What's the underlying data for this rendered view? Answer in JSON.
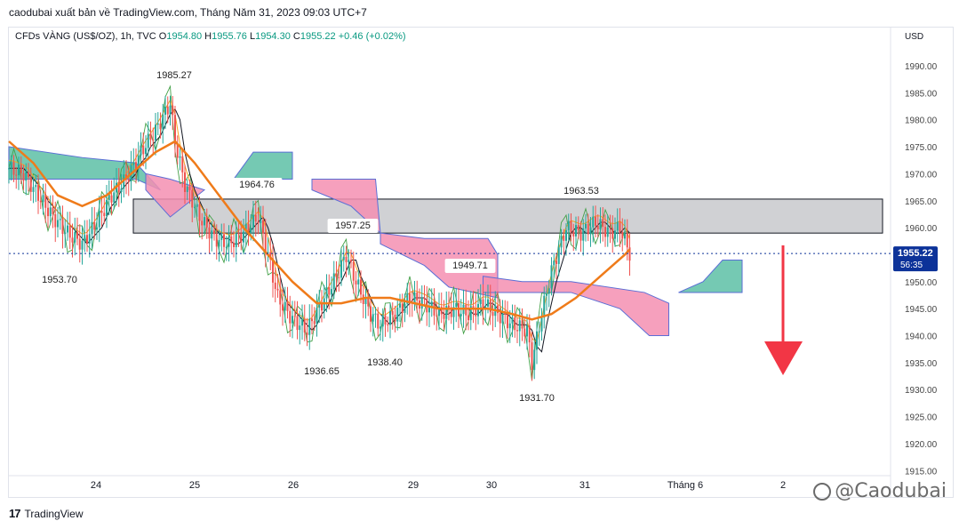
{
  "header_note": "caodubai xuất bản về TradingView.com, Tháng Năm 31, 2023 09:03 UTC+7",
  "legend": {
    "symbol": "CFDs VÀNG (US$/OZ), 1h, TVC",
    "open_label": "O",
    "open": "1954.80",
    "high_label": "H",
    "high": "1955.76",
    "low_label": "L",
    "low": "1954.30",
    "close_label": "C",
    "close": "1955.22",
    "change": "+0.46 (+0.02%)"
  },
  "brand": "TradingView",
  "watermark": "@Caodubai",
  "colors": {
    "up": "#26a69a",
    "down": "#ef5350",
    "price_label_bg": "#0c3299",
    "kumo_bull": "#5dbfa6",
    "kumo_bear": "#f48fb1",
    "zone": "#c8c9cc",
    "ma": "#ef7b1a",
    "arrow": "#f23645"
  },
  "chart_data": {
    "type": "candlestick",
    "currency": "USD",
    "y_ticks": [
      "1990.00",
      "1985.00",
      "1980.00",
      "1975.00",
      "1970.00",
      "1965.00",
      "1960.00",
      "1955.00",
      "1950.00",
      "1945.00",
      "1940.00",
      "1935.00",
      "1930.00",
      "1925.00",
      "1920.00",
      "1915.00"
    ],
    "ylim": [
      1913,
      1993
    ],
    "x_labels": [
      "24",
      "25",
      "26",
      "29",
      "30",
      "31",
      "Tháng 6",
      "2"
    ],
    "last_price": "1955.22",
    "countdown": "56:35",
    "price_annotations": [
      {
        "label": "1985.27",
        "price": 1985.27
      },
      {
        "label": "1953.70",
        "price": 1953.7
      },
      {
        "label": "1964.76",
        "price": 1964.76
      },
      {
        "label": "1936.65",
        "price": 1936.65
      },
      {
        "label": "1957.25",
        "price": 1957.25
      },
      {
        "label": "1938.40",
        "price": 1938.4
      },
      {
        "label": "1949.71",
        "price": 1949.71
      },
      {
        "label": "1963.53",
        "price": 1963.53
      },
      {
        "label": "1931.70",
        "price": 1931.7
      }
    ],
    "resistance_zone": [
      1959.0,
      1965.3
    ],
    "forecast": "down",
    "close_path": [
      [
        0,
        1971
      ],
      [
        6,
        1970
      ],
      [
        12,
        1966
      ],
      [
        18,
        1962
      ],
      [
        24,
        1959
      ],
      [
        30,
        1957
      ],
      [
        36,
        1961
      ],
      [
        42,
        1966
      ],
      [
        48,
        1969
      ],
      [
        54,
        1974
      ],
      [
        60,
        1978
      ],
      [
        66,
        1983
      ],
      [
        68,
        1976
      ],
      [
        72,
        1968
      ],
      [
        78,
        1962
      ],
      [
        84,
        1958
      ],
      [
        90,
        1957
      ],
      [
        96,
        1959
      ],
      [
        102,
        1962
      ],
      [
        106,
        1955
      ],
      [
        110,
        1947
      ],
      [
        116,
        1943
      ],
      [
        122,
        1941
      ],
      [
        128,
        1946
      ],
      [
        134,
        1951
      ],
      [
        138,
        1955
      ],
      [
        142,
        1950
      ],
      [
        148,
        1944
      ],
      [
        152,
        1942
      ],
      [
        158,
        1944
      ],
      [
        164,
        1947
      ],
      [
        170,
        1946
      ],
      [
        176,
        1944
      ],
      [
        182,
        1945
      ],
      [
        188,
        1944
      ],
      [
        194,
        1946
      ],
      [
        200,
        1944
      ],
      [
        206,
        1942
      ],
      [
        212,
        1941
      ],
      [
        214,
        1935
      ],
      [
        218,
        1944
      ],
      [
        222,
        1952
      ],
      [
        228,
        1960
      ],
      [
        234,
        1959
      ],
      [
        240,
        1961
      ],
      [
        246,
        1959
      ],
      [
        250,
        1960
      ],
      [
        254,
        1955.2
      ]
    ],
    "ma_path": [
      [
        0,
        1976
      ],
      [
        10,
        1972
      ],
      [
        20,
        1966
      ],
      [
        30,
        1964
      ],
      [
        40,
        1966
      ],
      [
        50,
        1970
      ],
      [
        60,
        1974
      ],
      [
        68,
        1976
      ],
      [
        76,
        1972
      ],
      [
        86,
        1966
      ],
      [
        96,
        1960
      ],
      [
        106,
        1955
      ],
      [
        116,
        1950
      ],
      [
        126,
        1946
      ],
      [
        136,
        1946
      ],
      [
        146,
        1947
      ],
      [
        156,
        1947
      ],
      [
        166,
        1946
      ],
      [
        176,
        1945
      ],
      [
        186,
        1945
      ],
      [
        196,
        1945
      ],
      [
        206,
        1944
      ],
      [
        214,
        1943
      ],
      [
        222,
        1944
      ],
      [
        232,
        1947
      ],
      [
        242,
        1951
      ],
      [
        252,
        1955
      ],
      [
        254,
        1956
      ]
    ],
    "kumo": [
      {
        "color": "bull",
        "upper": [
          [
            0,
            1975
          ],
          [
            30,
            1973
          ],
          [
            52,
            1972
          ],
          [
            62,
            1967
          ]
        ],
        "lower": [
          [
            0,
            1969
          ],
          [
            30,
            1969
          ],
          [
            52,
            1969
          ],
          [
            62,
            1967
          ]
        ]
      },
      {
        "color": "bear",
        "upper": [
          [
            56,
            1970
          ],
          [
            66,
            1969
          ],
          [
            80,
            1967
          ]
        ],
        "lower": [
          [
            56,
            1967
          ],
          [
            66,
            1962
          ],
          [
            80,
            1967
          ]
        ]
      },
      {
        "color": "bull",
        "upper": [
          [
            92,
            1969
          ],
          [
            100,
            1974
          ],
          [
            116,
            1974
          ]
        ],
        "lower": [
          [
            92,
            1969
          ],
          [
            100,
            1969
          ],
          [
            116,
            1969
          ]
        ]
      },
      {
        "color": "bear",
        "upper": [
          [
            124,
            1969
          ],
          [
            150,
            1969
          ],
          [
            152,
            1959
          ]
        ],
        "lower": [
          [
            124,
            1967
          ],
          [
            140,
            1964
          ],
          [
            152,
            1959
          ]
        ]
      },
      {
        "color": "bear",
        "upper": [
          [
            152,
            1959
          ],
          [
            170,
            1958
          ],
          [
            196,
            1958
          ],
          [
            200,
            1955
          ]
        ],
        "lower": [
          [
            152,
            1957
          ],
          [
            170,
            1953
          ],
          [
            180,
            1949
          ],
          [
            200,
            1947
          ]
        ]
      },
      {
        "color": "bear",
        "upper": [
          [
            194,
            1951
          ],
          [
            210,
            1950
          ],
          [
            230,
            1950
          ],
          [
            260,
            1948
          ],
          [
            270,
            1946
          ]
        ],
        "lower": [
          [
            194,
            1948
          ],
          [
            230,
            1948
          ],
          [
            250,
            1945
          ],
          [
            262,
            1940
          ],
          [
            270,
            1940
          ]
        ]
      },
      {
        "color": "bull",
        "upper": [
          [
            274,
            1948
          ],
          [
            284,
            1950
          ],
          [
            292,
            1954
          ],
          [
            300,
            1954
          ]
        ],
        "lower": [
          [
            274,
            1948
          ],
          [
            300,
            1948
          ]
        ]
      }
    ]
  }
}
